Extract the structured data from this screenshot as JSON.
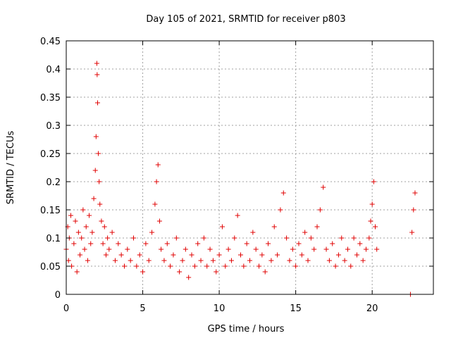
{
  "chart_data": {
    "type": "scatter",
    "title": "Day 105 of 2021, SRMTID for receiver p803",
    "xlabel": "GPS time / hours",
    "ylabel": "SRMTID / TECUs",
    "xlim": [
      0,
      24
    ],
    "ylim": [
      0,
      0.45
    ],
    "xticks": [
      0,
      5,
      10,
      15,
      20
    ],
    "xtick_labels": [
      "0",
      "5",
      "10",
      "15",
      "20"
    ],
    "yticks": [
      0,
      0.05,
      0.1,
      0.15,
      0.2,
      0.25,
      0.3,
      0.35,
      0.4,
      0.45
    ],
    "ytick_labels": [
      "0",
      "0.05",
      "0.1",
      "0.15",
      "0.2",
      "0.25",
      "0.3",
      "0.35",
      "0.4",
      "0.45"
    ],
    "grid": true,
    "marker": "+",
    "color": "#e00000",
    "series": [
      {
        "name": "SRMTID",
        "x": [
          0.0,
          0.1,
          0.15,
          0.2,
          0.3,
          0.35,
          0.5,
          0.6,
          0.7,
          0.8,
          0.9,
          1.0,
          1.1,
          1.2,
          1.3,
          1.4,
          1.5,
          1.6,
          1.7,
          1.8,
          1.9,
          1.95,
          2.0,
          2.02,
          2.05,
          2.1,
          2.15,
          2.2,
          2.3,
          2.4,
          2.5,
          2.6,
          2.7,
          2.8,
          3.0,
          3.2,
          3.4,
          3.6,
          3.8,
          4.0,
          4.2,
          4.4,
          4.6,
          4.8,
          5.0,
          5.2,
          5.4,
          5.6,
          5.8,
          5.9,
          6.0,
          6.1,
          6.2,
          6.4,
          6.6,
          6.8,
          7.0,
          7.2,
          7.4,
          7.6,
          7.8,
          8.0,
          8.2,
          8.4,
          8.6,
          8.8,
          9.0,
          9.2,
          9.4,
          9.6,
          9.8,
          10.0,
          10.2,
          10.4,
          10.6,
          10.8,
          11.0,
          11.2,
          11.4,
          11.6,
          11.8,
          12.0,
          12.2,
          12.4,
          12.6,
          12.8,
          13.0,
          13.2,
          13.4,
          13.6,
          13.8,
          14.0,
          14.2,
          14.4,
          14.6,
          14.8,
          15.0,
          15.2,
          15.4,
          15.6,
          15.8,
          16.0,
          16.2,
          16.4,
          16.6,
          16.8,
          17.0,
          17.2,
          17.4,
          17.6,
          17.8,
          18.0,
          18.2,
          18.4,
          18.6,
          18.8,
          19.0,
          19.2,
          19.4,
          19.6,
          19.8,
          19.9,
          20.0,
          20.1,
          20.2,
          20.3,
          22.5,
          22.6,
          22.7,
          22.8
        ],
        "y": [
          0.08,
          0.12,
          0.06,
          0.1,
          0.14,
          0.05,
          0.09,
          0.13,
          0.04,
          0.11,
          0.07,
          0.1,
          0.15,
          0.08,
          0.12,
          0.06,
          0.14,
          0.09,
          0.11,
          0.17,
          0.22,
          0.28,
          0.41,
          0.39,
          0.34,
          0.25,
          0.2,
          0.16,
          0.13,
          0.09,
          0.12,
          0.07,
          0.1,
          0.08,
          0.11,
          0.06,
          0.09,
          0.07,
          0.05,
          0.08,
          0.06,
          0.1,
          0.05,
          0.07,
          0.04,
          0.09,
          0.06,
          0.11,
          0.16,
          0.2,
          0.23,
          0.13,
          0.08,
          0.06,
          0.09,
          0.05,
          0.07,
          0.1,
          0.04,
          0.06,
          0.08,
          0.03,
          0.07,
          0.05,
          0.09,
          0.06,
          0.1,
          0.05,
          0.08,
          0.06,
          0.04,
          0.07,
          0.12,
          0.05,
          0.08,
          0.06,
          0.1,
          0.14,
          0.07,
          0.05,
          0.09,
          0.06,
          0.11,
          0.08,
          0.05,
          0.07,
          0.04,
          0.09,
          0.06,
          0.12,
          0.07,
          0.15,
          0.18,
          0.1,
          0.06,
          0.08,
          0.05,
          0.09,
          0.07,
          0.11,
          0.06,
          0.1,
          0.08,
          0.12,
          0.15,
          0.19,
          0.08,
          0.06,
          0.09,
          0.05,
          0.07,
          0.1,
          0.06,
          0.08,
          0.05,
          0.1,
          0.07,
          0.09,
          0.06,
          0.08,
          0.1,
          0.13,
          0.16,
          0.2,
          0.12,
          0.08,
          0.0,
          0.11,
          0.15,
          0.18
        ]
      }
    ]
  }
}
